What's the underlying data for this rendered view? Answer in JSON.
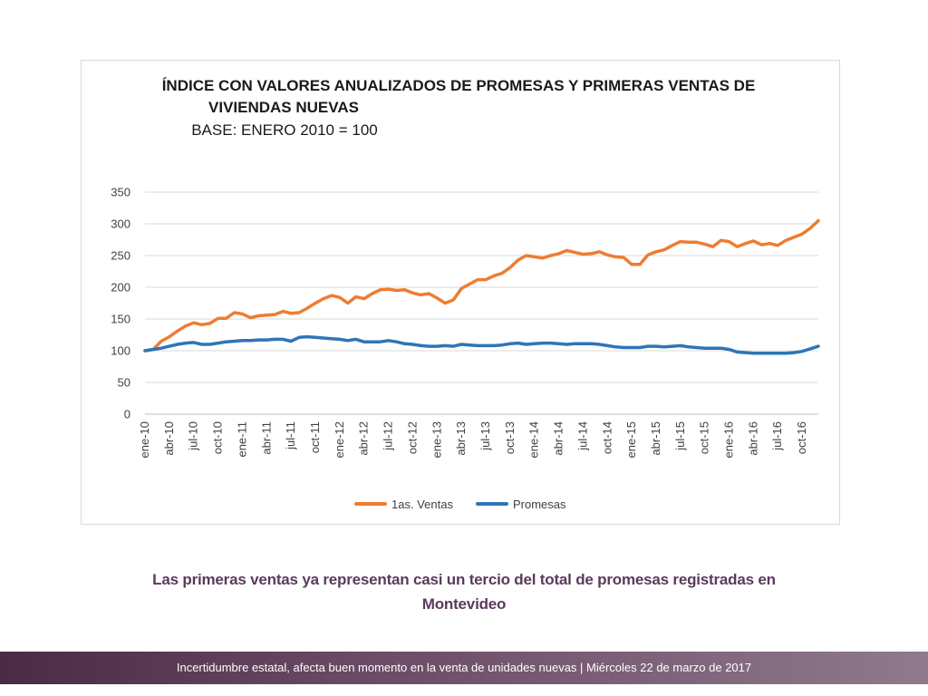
{
  "chart_data": {
    "type": "line",
    "title_lines": [
      "ÍNDICE CON VALORES ANUALIZADOS DE PROMESAS Y PRIMERAS VENTAS DE",
      "VIVIENDAS NUEVAS"
    ],
    "subtitle": "BASE: ENERO 2010 = 100",
    "xlabel": "",
    "ylabel": "",
    "ylim": [
      0,
      350
    ],
    "yticks": [
      0,
      50,
      100,
      150,
      200,
      250,
      300,
      350
    ],
    "grid": true,
    "legend_position": "bottom",
    "x": [
      "ene-10",
      "feb-10",
      "mar-10",
      "abr-10",
      "may-10",
      "jun-10",
      "jul-10",
      "ago-10",
      "sep-10",
      "oct-10",
      "nov-10",
      "dic-10",
      "ene-11",
      "feb-11",
      "mar-11",
      "abr-11",
      "may-11",
      "jun-11",
      "jul-11",
      "ago-11",
      "sep-11",
      "oct-11",
      "nov-11",
      "dic-11",
      "ene-12",
      "feb-12",
      "mar-12",
      "abr-12",
      "may-12",
      "jun-12",
      "jul-12",
      "ago-12",
      "sep-12",
      "oct-12",
      "nov-12",
      "dic-12",
      "ene-13",
      "feb-13",
      "mar-13",
      "abr-13",
      "may-13",
      "jun-13",
      "jul-13",
      "ago-13",
      "sep-13",
      "oct-13",
      "nov-13",
      "dic-13",
      "ene-14",
      "feb-14",
      "mar-14",
      "abr-14",
      "may-14",
      "jun-14",
      "jul-14",
      "ago-14",
      "sep-14",
      "oct-14",
      "nov-14",
      "dic-14",
      "ene-15",
      "feb-15",
      "mar-15",
      "abr-15",
      "may-15",
      "jun-15",
      "jul-15",
      "ago-15",
      "sep-15",
      "oct-15",
      "nov-15",
      "dic-15",
      "ene-16",
      "feb-16",
      "mar-16",
      "abr-16",
      "may-16",
      "jun-16",
      "jul-16",
      "ago-16",
      "sep-16",
      "oct-16",
      "nov-16",
      "dic-16"
    ],
    "x_tick_labels": [
      "ene-10",
      "abr-10",
      "jul-10",
      "oct-10",
      "ene-11",
      "abr-11",
      "jul-11",
      "oct-11",
      "ene-12",
      "abr-12",
      "jul-12",
      "oct-12",
      "ene-13",
      "abr-13",
      "jul-13",
      "oct-13",
      "ene-14",
      "abr-14",
      "jul-14",
      "oct-14",
      "ene-15",
      "abr-15",
      "jul-15",
      "oct-15",
      "ene-16",
      "abr-16",
      "jul-16",
      "oct-16"
    ],
    "series": [
      {
        "name": "1as. Ventas",
        "color": "#ed7d31",
        "values": [
          100,
          102,
          115,
          122,
          131,
          139,
          144,
          141,
          143,
          151,
          151,
          160,
          158,
          152,
          155,
          156,
          157,
          162,
          159,
          160,
          167,
          175,
          182,
          187,
          184,
          175,
          185,
          182,
          190,
          196,
          197,
          195,
          196,
          191,
          188,
          190,
          183,
          175,
          180,
          198,
          205,
          212,
          212,
          218,
          222,
          231,
          243,
          250,
          248,
          246,
          250,
          253,
          258,
          255,
          252,
          253,
          256,
          251,
          248,
          247,
          236,
          236,
          251,
          256,
          259,
          266,
          272,
          271,
          271,
          268,
          264,
          274,
          272,
          264,
          269,
          273,
          267,
          269,
          266,
          274,
          279,
          284,
          293,
          305
        ]
      },
      {
        "name": "Promesas",
        "color": "#2e75b6",
        "values": [
          100,
          102,
          104,
          107,
          110,
          112,
          113,
          110,
          110,
          112,
          114,
          115,
          116,
          116,
          117,
          117,
          118,
          118,
          115,
          121,
          122,
          121,
          120,
          119,
          118,
          116,
          118,
          114,
          114,
          114,
          116,
          114,
          111,
          110,
          108,
          107,
          107,
          108,
          107,
          110,
          109,
          108,
          108,
          108,
          109,
          111,
          112,
          110,
          111,
          112,
          112,
          111,
          110,
          111,
          111,
          111,
          110,
          108,
          106,
          105,
          105,
          105,
          107,
          107,
          106,
          107,
          108,
          106,
          105,
          104,
          104,
          104,
          102,
          98,
          97,
          96,
          96,
          96,
          96,
          96,
          97,
          99,
          103,
          107
        ]
      }
    ]
  },
  "caption": {
    "line1": "Las primeras ventas ya representan casi un tercio del total de promesas registradas en",
    "line2": "Montevideo"
  },
  "footer": {
    "text": "Incertidumbre estatal, afecta buen momento en la venta de unidades nuevas | Miércoles 22 de marzo de 2017"
  }
}
